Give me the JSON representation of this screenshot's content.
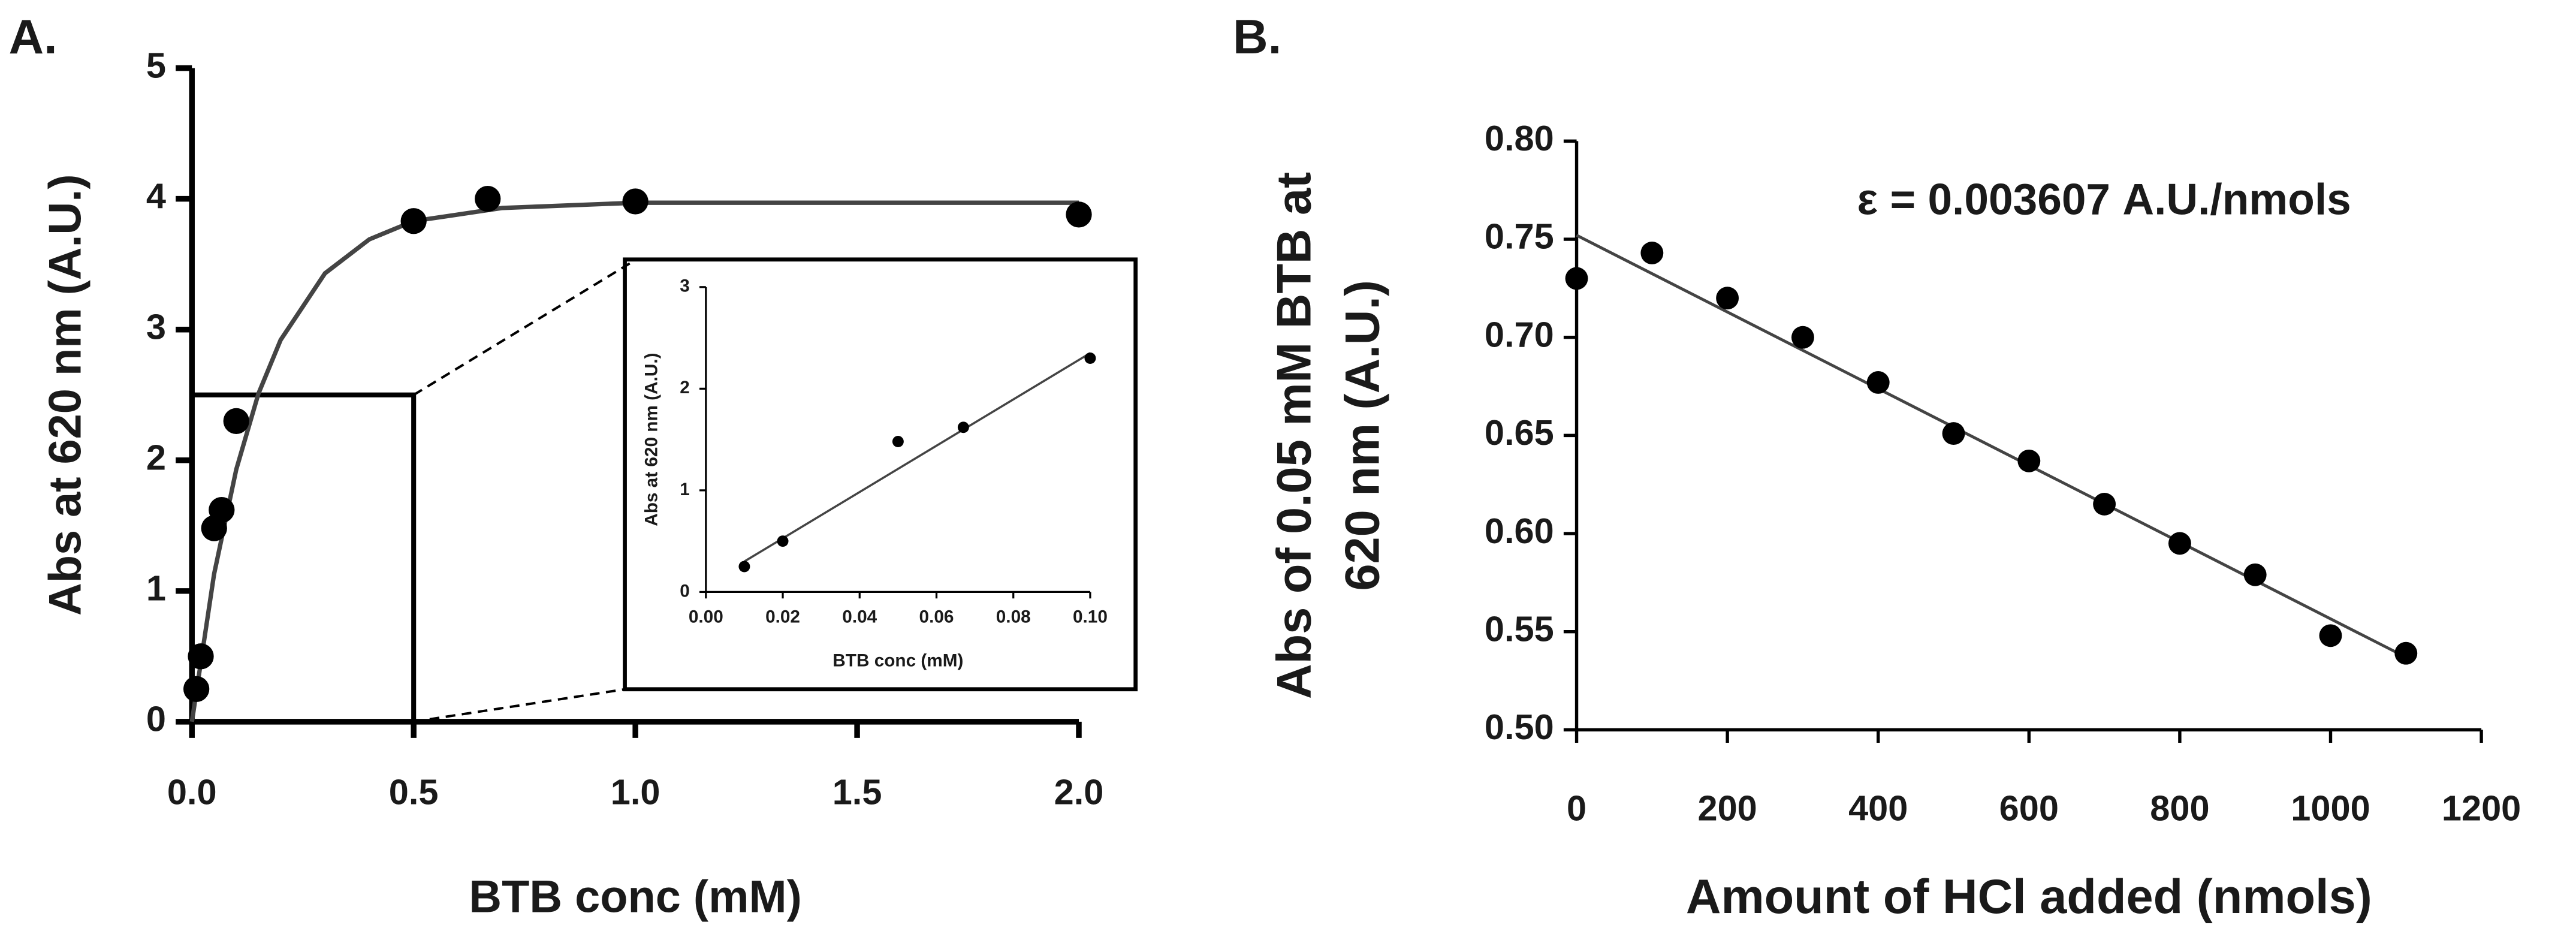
{
  "chart_data": [
    {
      "type": "scatter",
      "panel_label": "A.",
      "xlabel": "BTB conc (mM)",
      "ylabel": "Abs at 620 nm (A.U.)",
      "x": [
        0.01,
        0.02,
        0.05,
        0.067,
        0.1,
        0.5,
        0.667,
        1.0,
        2.0
      ],
      "values": [
        0.25,
        0.5,
        1.48,
        1.62,
        2.3,
        3.83,
        4.0,
        3.98,
        3.88
      ],
      "color": "#000000",
      "fit": {
        "x": [
          0,
          0.05,
          0.1,
          0.15,
          0.2,
          0.3,
          0.4,
          0.5,
          0.7,
          1.0,
          1.5,
          2.0
        ],
        "y": [
          0,
          1.13,
          1.93,
          2.51,
          2.92,
          3.43,
          3.69,
          3.83,
          3.93,
          3.97,
          3.97,
          3.97
        ]
      },
      "zoom_box": {
        "xlim": [
          0,
          0.5
        ],
        "ylim": [
          0,
          2.5
        ]
      },
      "xlim": [
        0,
        2
      ],
      "ylim": [
        0,
        5
      ],
      "xticks": [
        {
          "value": 0,
          "label": "0.0"
        },
        0.5,
        {
          "value": 1,
          "label": "1.0"
        },
        1.5,
        {
          "value": 2,
          "label": "2.0"
        }
      ],
      "yticks": [
        0,
        1,
        2,
        3,
        4,
        5
      ]
    },
    {
      "type": "scatter",
      "xlabel": "BTB conc (mM)",
      "ylabel": "Abs at 620 nm (A.U.)",
      "x": [
        0.01,
        0.02,
        0.05,
        0.067,
        0.1
      ],
      "values": [
        0.25,
        0.5,
        1.48,
        1.62,
        2.3
      ],
      "color": "#000000",
      "fit": {
        "x": [
          0.01,
          0.1
        ],
        "y": [
          0.3,
          2.35
        ]
      },
      "xlim": [
        0,
        0.1
      ],
      "ylim": [
        0,
        3
      ],
      "xticks": [
        {
          "value": 0,
          "label": "0.00"
        },
        0.02,
        0.04,
        0.06,
        0.08,
        {
          "value": 0.1,
          "label": "0.10"
        }
      ],
      "yticks": [
        0,
        1,
        2,
        3
      ]
    },
    {
      "type": "scatter",
      "panel_label": "B.",
      "xlabel": "Amount of HCl added (nmols)",
      "ylabel": [
        "Abs of 0.05 mM BTB at",
        "620 nm (A.U.)"
      ],
      "annotation": "ε = 0.003607 A.U./nmols",
      "x": [
        0,
        100,
        200,
        300,
        400,
        500,
        600,
        700,
        800,
        900,
        1000,
        1100
      ],
      "values": [
        0.73,
        0.743,
        0.72,
        0.7,
        0.677,
        0.651,
        0.637,
        0.615,
        0.595,
        0.579,
        0.548,
        0.539
      ],
      "color": "#000000",
      "fit": {
        "x": [
          0,
          1100
        ],
        "y": [
          0.752,
          0.537
        ]
      },
      "xlim": [
        0,
        1200
      ],
      "ylim": [
        0.5,
        0.8
      ],
      "xticks": [
        0,
        200,
        400,
        600,
        800,
        1000,
        1200
      ],
      "yticks": [
        {
          "value": 0.5,
          "label": "0.50"
        },
        0.55,
        {
          "value": 0.6,
          "label": "0.60"
        },
        0.65,
        {
          "value": 0.7,
          "label": "0.70"
        },
        0.75,
        {
          "value": 0.8,
          "label": "0.80"
        }
      ]
    }
  ]
}
